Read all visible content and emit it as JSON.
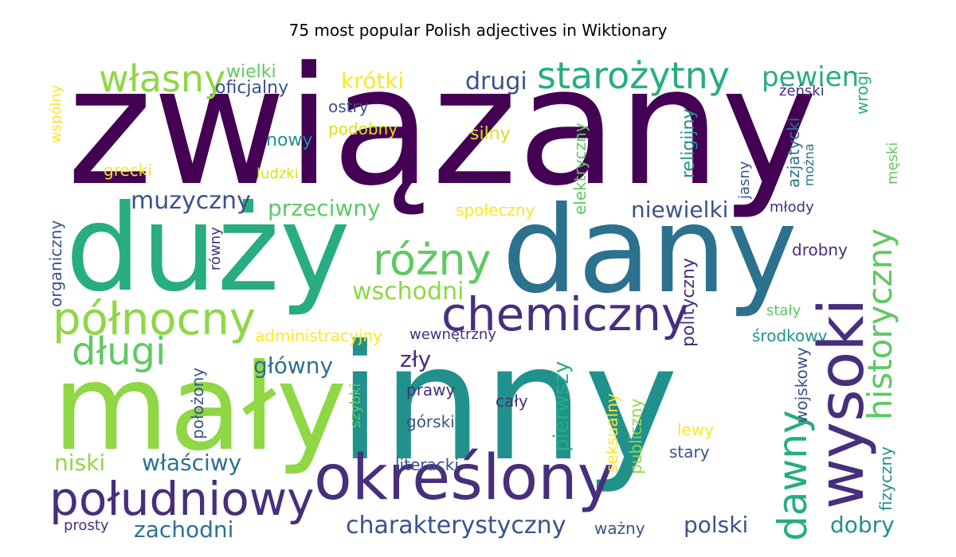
{
  "title": "75 most popular Polish adjectives in Wiktionary",
  "colors": {
    "dark_purple": "#440154",
    "indigo": "#472f7d",
    "blue": "#3b528b",
    "steel_blue": "#2c718e",
    "teal": "#21918c",
    "green_teal": "#27ad81",
    "green": "#5ec962",
    "lime": "#8fd744",
    "yellow": "#d8e219",
    "bright_yellow": "#fde725"
  },
  "words": {
    "zwiazany": "związany",
    "duzy": "duży",
    "dany": "dany",
    "inny": "inny",
    "maly": "mały",
    "wysoki": "wysoki",
    "okreslony": "określony",
    "poludniowy": "południowy",
    "chemiczny": "chemiczny",
    "polnocny": "północny",
    "rozny": "różny",
    "historyczny": "historyczny",
    "dawny": "dawny",
    "dlugi": "długi",
    "starozytny": "starożytny",
    "wlasny": "własny",
    "pewien": "pewien",
    "charakterystyczny": "charakterystyczny",
    "muzyczny": "muzyczny",
    "przeciwny": "przeciwny",
    "niewielki": "niewielki",
    "wschodni": "wschodni",
    "zachodni": "zachodni",
    "wlasciwy": "właściwy",
    "glowny": "główny",
    "drugi": "drugi",
    "polski": "polski",
    "krotki": "krótki",
    "pierwszy": "pierwszy",
    "dobry": "dobry",
    "niski": "niski",
    "zly": "zły",
    "polityczny": "polityczny",
    "religijny": "religijny",
    "elektryczny": "elektryczny",
    "azjatycki": "azjatycki",
    "spoleczny": "społeczny",
    "administracyjny": "administracyjny",
    "wielki": "wielki",
    "oficjalny": "oficjalny",
    "nowy": "nowy",
    "podobny": "podobny",
    "silny": "silny",
    "ostry": "ostry",
    "grecki": "grecki",
    "ludzki": "ludzki",
    "organiczny": "organiczny",
    "wspolny": "wspólny",
    "rowny": "równy",
    "polozony": "położony",
    "prawy": "prawy",
    "caly": "cały",
    "gorski": "górski",
    "szybki": "szybki",
    "literacki": "literacki",
    "wazny": "ważny",
    "prosty": "prosty",
    "seksualny": "seksualny",
    "publiczny": "publiczny",
    "lewy": "lewy",
    "stary": "stary",
    "wojskowy": "wojskowy",
    "fizyczny": "fizyczny",
    "srodkowy": "środkowy",
    "staly": "stały",
    "drobny": "drobny",
    "mlody": "młody",
    "jasny": "jasny",
    "mozna": "można",
    "meski": "męski",
    "zenski": "żeński",
    "wrogi": "wrogi",
    "wewnetrzny": "wewnętrzny"
  }
}
